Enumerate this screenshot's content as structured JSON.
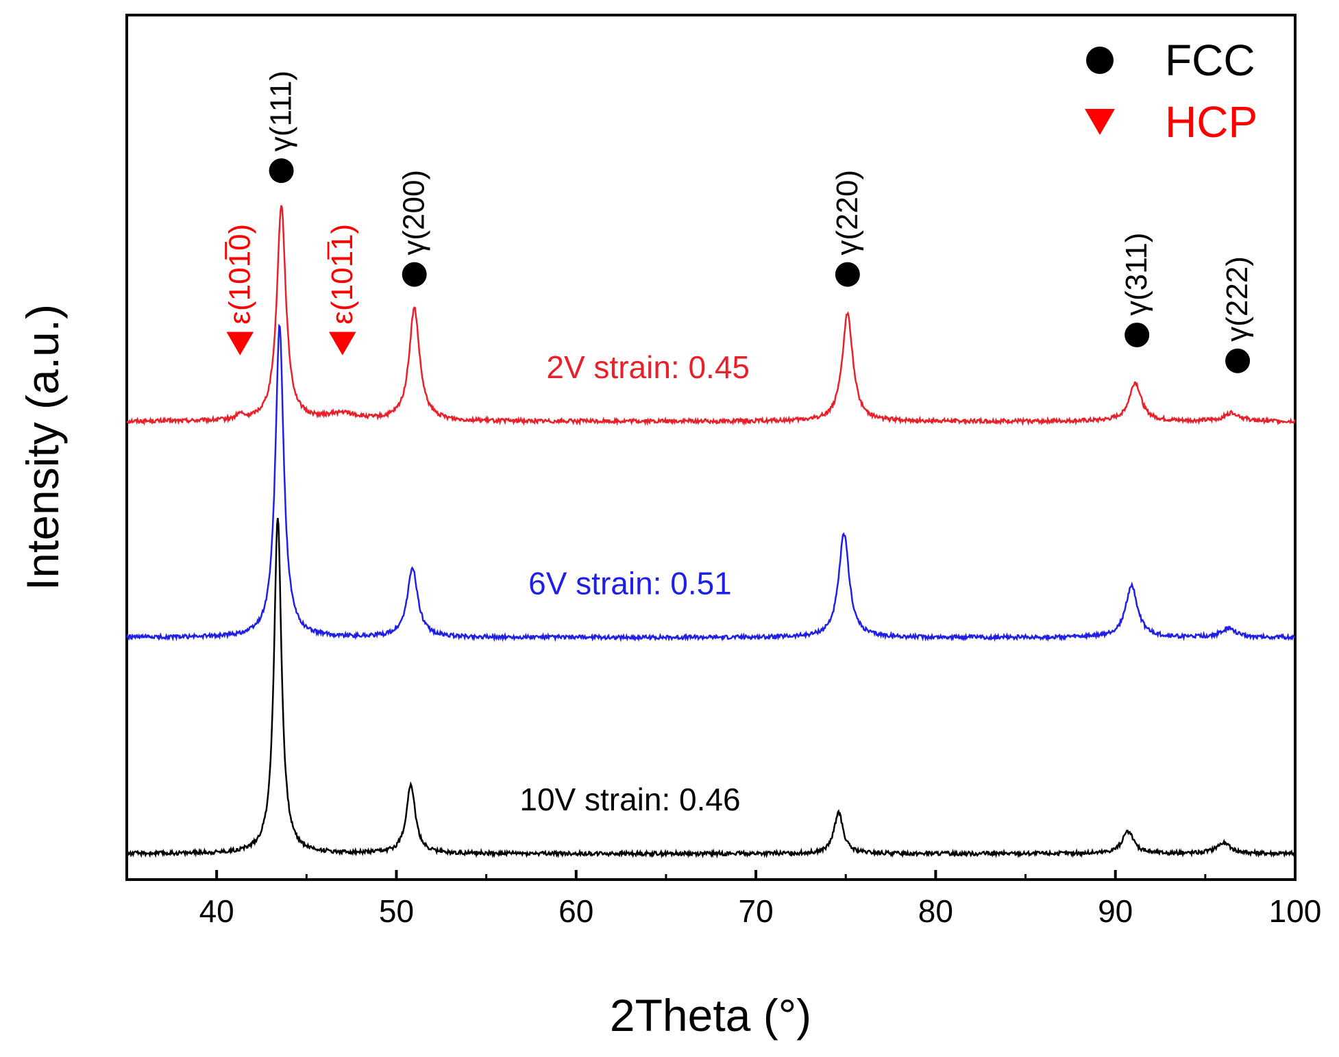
{
  "chart_data": {
    "type": "line",
    "title": "",
    "xlabel": "2Theta (°)",
    "ylabel": "Intensity (a.u.)",
    "xlim": [
      35,
      100
    ],
    "xticks": [
      "40",
      "50",
      "60",
      "70",
      "80",
      "90",
      "100"
    ],
    "ylim": [
      0,
      100
    ],
    "grid": false,
    "legend_position": "top-right",
    "legend": [
      {
        "label": "FCC",
        "marker": "circle",
        "color": "#000000"
      },
      {
        "label": "HCP",
        "marker": "triangle-down",
        "color": "#ff0000"
      }
    ],
    "series": [
      {
        "name": "2V strain: 0.45",
        "color": "#e8202a",
        "label_x": 64,
        "label_y": 58,
        "baseline": 53,
        "peaks": [
          [
            41.3,
            0.6,
            0.2
          ],
          [
            43.6,
            25,
            0.3
          ],
          [
            47.0,
            0.8,
            1.0
          ],
          [
            51.0,
            13,
            0.35
          ],
          [
            75.1,
            12.5,
            0.35
          ],
          [
            91.1,
            4.5,
            0.4
          ],
          [
            96.5,
            1.0,
            0.5
          ]
        ]
      },
      {
        "name": "6V strain: 0.51",
        "color": "#1f1fe6",
        "label_x": 63,
        "label_y": 33,
        "baseline": 28,
        "peaks": [
          [
            43.5,
            36,
            0.28
          ],
          [
            50.9,
            8,
            0.35
          ],
          [
            74.9,
            12,
            0.35
          ],
          [
            90.9,
            6,
            0.4
          ],
          [
            96.3,
            1.0,
            0.5
          ]
        ]
      },
      {
        "name": "10V strain: 0.46",
        "color": "#000000",
        "label_x": 63,
        "label_y": 8,
        "baseline": 3,
        "peaks": [
          [
            43.4,
            39,
            0.25
          ],
          [
            50.8,
            8,
            0.3
          ],
          [
            74.6,
            4.8,
            0.3
          ],
          [
            90.7,
            2.5,
            0.4
          ],
          [
            96.0,
            1.2,
            0.5
          ]
        ]
      }
    ],
    "annotations": [
      {
        "text": "γ(111)",
        "x": 43.6,
        "y": 72,
        "marker": "circle",
        "marker_y": 82,
        "color": "#000000"
      },
      {
        "text": "ε(101̅0)",
        "x": 41.3,
        "y": 60,
        "marker": "triangle-down",
        "marker_y": 62,
        "color": "#ff0000"
      },
      {
        "text": "ε(101̅1)",
        "x": 47.0,
        "y": 60,
        "marker": "triangle-down",
        "marker_y": 62,
        "color": "#ff0000"
      },
      {
        "text": "γ(200)",
        "x": 51.0,
        "y": 72,
        "marker": "circle",
        "marker_y": 70,
        "color": "#000000"
      },
      {
        "text": "γ(220)",
        "x": 75.1,
        "y": 72,
        "marker": "circle",
        "marker_y": 70,
        "color": "#000000"
      },
      {
        "text": "γ(311)",
        "x": 91.2,
        "y": 63,
        "marker": "circle",
        "marker_y": 63,
        "color": "#000000"
      },
      {
        "text": "γ(222)",
        "x": 96.8,
        "y": 60,
        "marker": "circle",
        "marker_y": 60,
        "color": "#000000"
      }
    ]
  }
}
